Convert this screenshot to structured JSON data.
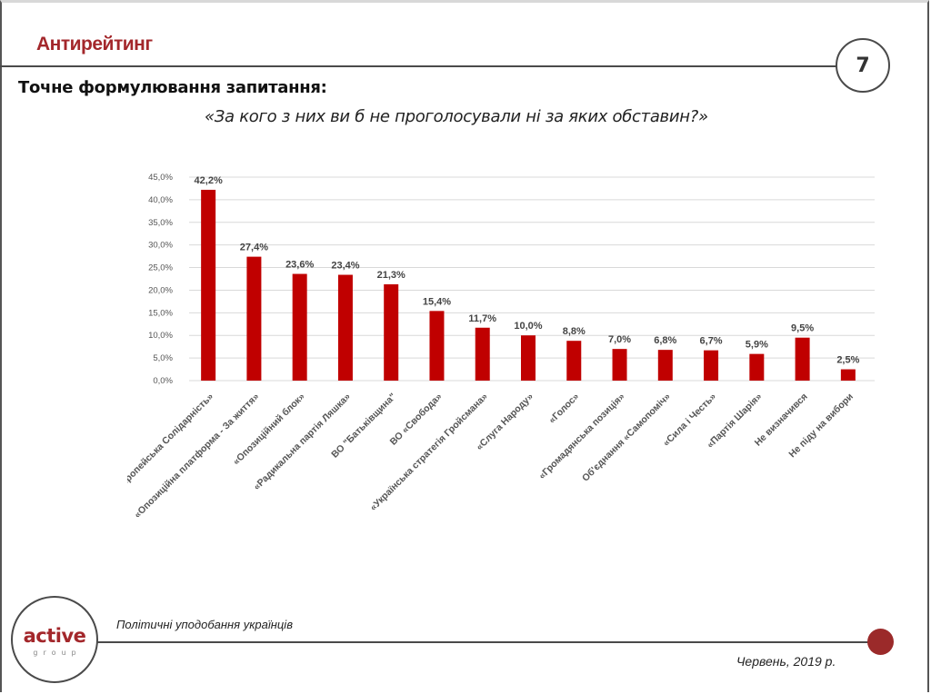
{
  "header": {
    "title": "Антирейтинг",
    "page_number": "7",
    "question_label": "Точне формулювання запитання:",
    "question": "«За кого з них ви б не проголосували ні за яких обставин?»"
  },
  "footer": {
    "logo_main": "active",
    "logo_sub": "group",
    "subtitle": "Політичні уподобання українців",
    "date": "Червень, 2019 р."
  },
  "colors": {
    "brand": "#a3272b",
    "bar": "#c00000",
    "grid": "#d9d9d9",
    "dot": "#9b2a2a"
  },
  "chart_data": {
    "type": "bar",
    "title": "",
    "xlabel": "",
    "ylabel": "",
    "ylim": [
      0,
      45
    ],
    "yticks": [
      "0,0%",
      "5,0%",
      "10,0%",
      "15,0%",
      "20,0%",
      "25,0%",
      "30,0%",
      "35,0%",
      "40,0%",
      "45,0%"
    ],
    "grid": true,
    "categories": [
      "«Європейська Солідарність»",
      "«Опозиційна платформа - За життя»",
      "«Опозиційний блок»",
      "«Радикальна партія Ляшка»",
      "ВО \"Батьківщина\"",
      "ВО «Свобода»",
      "«Українська стратегія Гройсмана»",
      "«Слуга Народу»",
      "«Голос»",
      "«Громадянська позиція»",
      "Об'єднання «Самопоміч»",
      "«Сила і Честь»",
      "«Партія Шарія»",
      "Не визначився",
      "Не піду на вибори"
    ],
    "values": [
      42.2,
      27.4,
      23.6,
      23.4,
      21.3,
      15.4,
      11.7,
      10.0,
      8.8,
      7.0,
      6.8,
      6.7,
      5.9,
      9.5,
      2.5
    ],
    "labels": [
      "42,2%",
      "27,4%",
      "23,6%",
      "23,4%",
      "21,3%",
      "15,4%",
      "11,7%",
      "10,0%",
      "8,8%",
      "7,0%",
      "6,8%",
      "6,7%",
      "5,9%",
      "9,5%",
      "2,5%"
    ]
  }
}
